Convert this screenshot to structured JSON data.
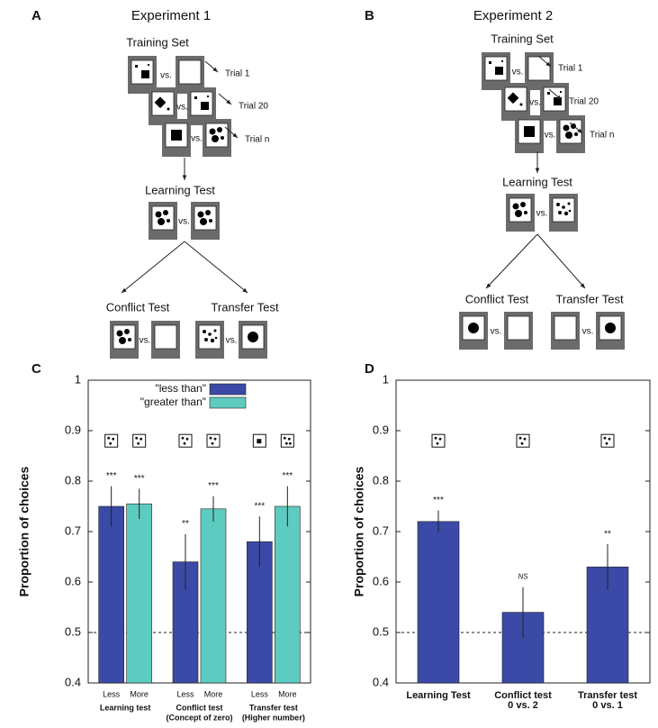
{
  "diagrams": [
    {
      "label": "A",
      "title": "Experiment 1",
      "training": "Training Set",
      "vs": "vs.",
      "trials": [
        "Trial 1",
        "Trial 20",
        "Trial n"
      ],
      "learning": "Learning Test",
      "conflict": "Conflict Test",
      "transfer": "Transfer Test"
    },
    {
      "label": "B",
      "title": "Experiment 2",
      "training": "Training Set",
      "vs": "vs.",
      "trials": [
        "Trial 1",
        "Trial 20",
        "Trial n"
      ],
      "learning": "Learning Test",
      "conflict": "Conflict Test",
      "transfer": "Transfer Test"
    }
  ],
  "chart_data": [
    {
      "type": "bar",
      "panel": "C",
      "ylabel": "Proportion of choices",
      "categories": [
        [
          "Learning test"
        ],
        [
          "Conflict test",
          "(Concept of zero)"
        ],
        [
          "Transfer test",
          "(Higher number)"
        ]
      ],
      "bar_labels": [
        "Less",
        "More"
      ],
      "series": [
        {
          "name": "\"less than\"",
          "color": "#3a4aa6",
          "values": [
            0.75,
            0.64,
            0.68
          ],
          "errors": [
            0.04,
            0.055,
            0.05
          ],
          "significance": [
            "***",
            "**",
            "***"
          ]
        },
        {
          "name": "\"greater than\"",
          "color": "#5ecbc0",
          "values": [
            0.755,
            0.745,
            0.75
          ],
          "errors": [
            0.03,
            0.025,
            0.04
          ],
          "significance": [
            "***",
            "***",
            "***"
          ]
        }
      ],
      "ylim": [
        0.4,
        1
      ],
      "yticks": [
        0.4,
        0.5,
        0.6,
        0.7,
        0.8,
        0.9,
        1
      ],
      "reference_line": 0.5,
      "legend": "top"
    },
    {
      "type": "bar",
      "panel": "D",
      "ylabel": "Proportion of choices",
      "categories": [
        [
          "Learning Test"
        ],
        [
          "Conflict test",
          "0 vs. 2"
        ],
        [
          "Transfer test",
          "0 vs. 1"
        ]
      ],
      "series": [
        {
          "color": "#3a4aa6",
          "values": [
            0.72,
            0.54,
            0.63
          ],
          "errors": [
            0.022,
            0.05,
            0.045
          ],
          "significance": [
            "***",
            "NS",
            "**"
          ]
        }
      ],
      "ylim": [
        0.4,
        1
      ],
      "yticks": [
        0.4,
        0.5,
        0.6,
        0.7,
        0.8,
        0.9,
        1
      ],
      "reference_line": 0.5
    }
  ]
}
